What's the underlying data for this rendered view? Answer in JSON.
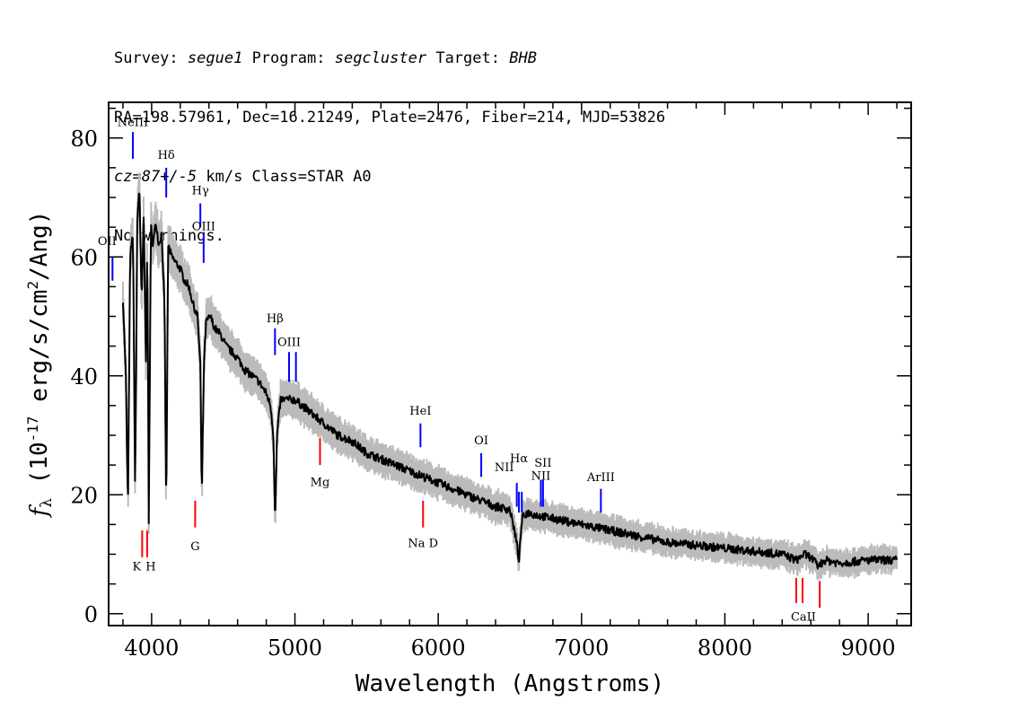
{
  "header": {
    "survey_label": "Survey:",
    "survey": "segue1",
    "program_label": "Program:",
    "program": "segcluster",
    "target_label": "Target:",
    "target": "BHB",
    "line2": "RA=198.57961, Dec=16.21249, Plate=2476, Fiber=214, MJD=53826",
    "cz_label": "cz",
    "cz_value": "=87+/-5",
    "cz_unit_class": " km/s Class=STAR A0",
    "warnings": "No warnings."
  },
  "chart_data": {
    "type": "line",
    "xlabel": "Wavelength (Angstroms)",
    "ylabel": "f_λ (10^-17 erg/s/cm^2/Ang)",
    "xlim": [
      3700,
      9300
    ],
    "ylim": [
      -2,
      86
    ],
    "x_ticks": [
      4000,
      5000,
      6000,
      7000,
      8000,
      9000
    ],
    "y_ticks": [
      0,
      20,
      40,
      60,
      80
    ],
    "x_minor_step": 200,
    "y_minor_step": 5,
    "colors": {
      "flux": "#000000",
      "error": "#bbbbbb",
      "emission": "#0000ff",
      "absorption": "#ff0000",
      "label_tick": "#000000"
    },
    "series": [
      {
        "role": "flux",
        "x": [
          3800,
          3820,
          3835,
          3850,
          3870,
          3885,
          3900,
          3915,
          3930,
          3945,
          3960,
          3970,
          3980,
          3995,
          4010,
          4030,
          4050,
          4070,
          4090,
          4102,
          4115,
          4140,
          4170,
          4200,
          4230,
          4260,
          4290,
          4320,
          4340,
          4350,
          4365,
          4380,
          4410,
          4440,
          4480,
          4520,
          4560,
          4600,
          4650,
          4700,
          4750,
          4800,
          4830,
          4850,
          4862,
          4875,
          4900,
          4950,
          5000,
          5100,
          5200,
          5300,
          5400,
          5500,
          5600,
          5700,
          5800,
          5900,
          6000,
          6100,
          6200,
          6300,
          6400,
          6500,
          6540,
          6563,
          6585,
          6620,
          6700,
          6800,
          6900,
          7000,
          7100,
          7200,
          7400,
          7600,
          7800,
          8000,
          8200,
          8400,
          8500,
          8550,
          8600,
          8650,
          8700,
          8800,
          9000,
          9200
        ],
        "y": [
          53,
          40,
          17,
          60,
          64,
          20,
          66,
          72,
          52,
          67,
          42,
          64,
          15,
          65,
          62,
          66,
          62,
          64,
          52,
          16,
          62,
          60,
          59,
          58,
          56,
          55,
          52,
          50,
          42,
          19,
          42,
          49,
          50,
          48,
          47,
          45,
          44,
          43,
          41,
          40,
          39,
          37,
          35,
          30,
          15,
          30,
          36,
          36,
          36,
          34,
          32,
          30,
          29,
          27,
          26,
          25,
          24,
          23,
          22,
          21,
          20,
          19,
          18,
          17.5,
          13,
          9,
          16,
          17,
          16.5,
          16,
          15.5,
          15,
          14.5,
          14,
          13,
          12,
          11.5,
          11,
          10.5,
          10,
          9,
          10,
          9.5,
          8,
          9,
          8.5,
          9,
          9
        ]
      }
    ],
    "lines": [
      {
        "name": "OII",
        "wavelength": 3727,
        "kind": "emission",
        "tick_y": [
          56,
          60
        ],
        "label_y": 62,
        "label_text_dx": -6
      },
      {
        "name": "NeIII",
        "wavelength": 3869,
        "kind": "emission",
        "tick_y": [
          76.5,
          81
        ],
        "label_y": 82
      },
      {
        "name": "Hδ",
        "wavelength": 4102,
        "kind": "emission",
        "tick_y": [
          70,
          75
        ],
        "label_y": 76.5
      },
      {
        "name": "Hγ",
        "wavelength": 4340,
        "kind": "emission",
        "tick_y": [
          69,
          65
        ],
        "label_y": 70.5
      },
      {
        "name": "OIII",
        "wavelength": 4363,
        "kind": "emission",
        "tick_y": [
          59,
          64
        ],
        "label_y": 64.5
      },
      {
        "name": "Hβ",
        "wavelength": 4861,
        "kind": "emission",
        "tick_y": [
          43.5,
          48
        ],
        "label_y": 49
      },
      {
        "name": "OIII",
        "wavelength": 4959,
        "kind": "emission",
        "tick_y": [
          39,
          44
        ],
        "label_y": 45
      },
      {
        "name": "",
        "wavelength": 5007,
        "kind": "emission",
        "tick_y": [
          39,
          44
        ]
      },
      {
        "name": "HeI",
        "wavelength": 5876,
        "kind": "emission",
        "tick_y": [
          28,
          32
        ],
        "label_y": 33.5
      },
      {
        "name": "OI",
        "wavelength": 6300,
        "kind": "emission",
        "tick_y": [
          23,
          27
        ],
        "label_y": 28.5
      },
      {
        "name": "NII",
        "wavelength": 6548,
        "kind": "emission",
        "tick_y": [
          18,
          22
        ],
        "label_y": 24,
        "label_text_dx": -14
      },
      {
        "name": "Hα",
        "wavelength": 6563,
        "kind": "emission",
        "tick_y": [
          17,
          20.5
        ],
        "label_y": 25.5
      },
      {
        "name": "",
        "wavelength": 6583,
        "kind": "emission",
        "tick_y": [
          17,
          20.5
        ]
      },
      {
        "name": "NII",
        "wavelength": 6716,
        "kind": "emission",
        "tick_y": [
          18,
          22.5
        ],
        "label_y": 22.5
      },
      {
        "name": "SII",
        "wavelength": 6731,
        "kind": "emission",
        "tick_y": [
          18,
          22.5
        ],
        "label_y": 24.7
      },
      {
        "name": "ArIII",
        "wavelength": 7135,
        "kind": "emission",
        "tick_y": [
          17,
          21
        ],
        "label_y": 22.3
      },
      {
        "name": "K",
        "wavelength": 3934,
        "kind": "absorption",
        "tick_y": [
          9.5,
          14
        ],
        "label_y": 7.3,
        "label_text_dx": -6
      },
      {
        "name": "H",
        "wavelength": 3969,
        "kind": "absorption",
        "tick_y": [
          9.5,
          14
        ],
        "label_y": 7.3,
        "label_text_dx": 4
      },
      {
        "name": "G",
        "wavelength": 4304,
        "kind": "absorption",
        "tick_y": [
          14.5,
          19
        ],
        "label_y": 10.7
      },
      {
        "name": "Mg",
        "wavelength": 5175,
        "kind": "absorption",
        "tick_y": [
          25,
          29.5
        ],
        "label_y": 21.5
      },
      {
        "name": "Na D",
        "wavelength": 5894,
        "kind": "absorption",
        "tick_y": [
          14.5,
          19
        ],
        "label_y": 11.2
      },
      {
        "name": "CaII",
        "wavelength": 8498,
        "kind": "absorption",
        "tick_y": [
          1.8,
          6
        ],
        "label_y": -1.2,
        "label_text_dx": 8
      },
      {
        "name": "",
        "wavelength": 8542,
        "kind": "absorption",
        "tick_y": [
          1.8,
          6
        ]
      },
      {
        "name": "",
        "wavelength": 8662,
        "kind": "absorption",
        "tick_y": [
          1,
          5.5
        ]
      }
    ]
  }
}
